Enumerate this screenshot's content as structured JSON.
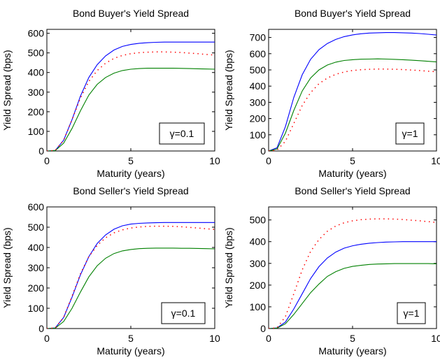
{
  "chart_data": [
    {
      "type": "line",
      "title": "Bond Buyer's Yield Spread",
      "xlabel": "Maturity (years)",
      "ylabel": "Yield Spread (bps)",
      "xlim": [
        0,
        10
      ],
      "ylim": [
        0,
        620
      ],
      "xticks": [
        0,
        5,
        10
      ],
      "yticks": [
        0,
        100,
        200,
        300,
        400,
        500,
        600
      ],
      "annotation": "γ=0.1",
      "series": [
        {
          "style": "solid",
          "color": "#0000ff",
          "x": [
            0,
            0.5,
            1,
            1.5,
            2,
            2.5,
            3,
            3.5,
            4,
            4.5,
            5,
            5.5,
            6,
            6.5,
            7,
            7.5,
            8,
            8.5,
            9,
            9.5,
            10
          ],
          "values": [
            0,
            3,
            55,
            160,
            280,
            375,
            440,
            485,
            515,
            533,
            543,
            549,
            552,
            554,
            555,
            555,
            555,
            555,
            555,
            555,
            555
          ]
        },
        {
          "style": "solid",
          "color": "#008000",
          "x": [
            0,
            0.5,
            1,
            1.5,
            2,
            2.5,
            3,
            3.5,
            4,
            4.5,
            5,
            5.5,
            6,
            6.5,
            7,
            7.5,
            8,
            8.5,
            9,
            9.5,
            10
          ],
          "values": [
            0,
            2,
            40,
            115,
            205,
            285,
            340,
            375,
            397,
            410,
            417,
            420,
            422,
            422,
            422,
            422,
            421,
            420,
            419,
            418,
            417
          ]
        },
        {
          "style": "dotted",
          "color": "#ff0000",
          "x": [
            0,
            0.5,
            1,
            1.5,
            2,
            2.5,
            3,
            3.5,
            4,
            4.5,
            5,
            5.5,
            6,
            6.5,
            7,
            7.5,
            8,
            8.5,
            9,
            9.5,
            10
          ],
          "values": [
            0,
            3,
            55,
            160,
            270,
            355,
            410,
            448,
            472,
            487,
            496,
            501,
            504,
            505,
            505,
            504,
            502,
            499,
            496,
            492,
            489
          ]
        }
      ]
    },
    {
      "type": "line",
      "title": "Bond Buyer's Yield Spread",
      "xlabel": "Maturity (years)",
      "ylabel": "Yield Spread (bps)",
      "xlim": [
        0,
        10
      ],
      "ylim": [
        0,
        750
      ],
      "xticks": [
        0,
        5,
        10
      ],
      "yticks": [
        0,
        100,
        200,
        300,
        400,
        500,
        600,
        700
      ],
      "annotation": "γ=1",
      "series": [
        {
          "style": "solid",
          "color": "#0000ff",
          "x": [
            0,
            0.5,
            1,
            1.5,
            2,
            2.5,
            3,
            3.5,
            4,
            4.5,
            5,
            5.5,
            6,
            6.5,
            7,
            7.5,
            8,
            8.5,
            9,
            9.5,
            10
          ],
          "values": [
            0,
            20,
            150,
            330,
            470,
            565,
            625,
            663,
            688,
            705,
            716,
            723,
            727,
            729,
            730,
            730,
            729,
            727,
            724,
            720,
            715
          ]
        },
        {
          "style": "solid",
          "color": "#008000",
          "x": [
            0,
            0.5,
            1,
            1.5,
            2,
            2.5,
            3,
            3.5,
            4,
            4.5,
            5,
            5.5,
            6,
            6.5,
            7,
            7.5,
            8,
            8.5,
            9,
            9.5,
            10
          ],
          "values": [
            0,
            12,
            110,
            250,
            370,
            450,
            500,
            530,
            548,
            558,
            563,
            566,
            567,
            568,
            567,
            565,
            563,
            560,
            557,
            553,
            549
          ]
        },
        {
          "style": "dotted",
          "color": "#ff0000",
          "x": [
            0,
            0.5,
            1,
            1.5,
            2,
            2.5,
            3,
            3.5,
            4,
            4.5,
            5,
            5.5,
            6,
            6.5,
            7,
            7.5,
            8,
            8.5,
            9,
            9.5,
            10
          ],
          "values": [
            0,
            5,
            60,
            170,
            280,
            360,
            415,
            450,
            473,
            487,
            496,
            501,
            504,
            505,
            505,
            504,
            502,
            499,
            496,
            492,
            489
          ]
        }
      ]
    },
    {
      "type": "line",
      "title": "Bond Seller's Yield Spread",
      "xlabel": "Maturity (years)",
      "ylabel": "Yield Spread (bps)",
      "xlim": [
        0,
        10
      ],
      "ylim": [
        0,
        600
      ],
      "xticks": [
        0,
        5,
        10
      ],
      "yticks": [
        0,
        100,
        200,
        300,
        400,
        500,
        600
      ],
      "annotation": "γ=0.1",
      "series": [
        {
          "style": "solid",
          "color": "#0000ff",
          "x": [
            0,
            0.5,
            1,
            1.5,
            2,
            2.5,
            3,
            3.5,
            4,
            4.5,
            5,
            5.5,
            6,
            6.5,
            7,
            7.5,
            8,
            8.5,
            9,
            9.5,
            10
          ],
          "values": [
            0,
            3,
            55,
            155,
            265,
            355,
            420,
            462,
            490,
            507,
            515,
            519,
            521,
            522,
            523,
            523,
            523,
            523,
            523,
            523,
            523
          ]
        },
        {
          "style": "solid",
          "color": "#008000",
          "x": [
            0,
            0.5,
            1,
            1.5,
            2,
            2.5,
            3,
            3.5,
            4,
            4.5,
            5,
            5.5,
            6,
            6.5,
            7,
            7.5,
            8,
            8.5,
            9,
            9.5,
            10
          ],
          "values": [
            0,
            2,
            35,
            100,
            180,
            255,
            310,
            347,
            370,
            383,
            390,
            394,
            396,
            397,
            397,
            397,
            396,
            396,
            395,
            394,
            393
          ]
        },
        {
          "style": "dotted",
          "color": "#ff0000",
          "x": [
            0,
            0.5,
            1,
            1.5,
            2,
            2.5,
            3,
            3.5,
            4,
            4.5,
            5,
            5.5,
            6,
            6.5,
            7,
            7.5,
            8,
            8.5,
            9,
            9.5,
            10
          ],
          "values": [
            0,
            3,
            55,
            160,
            270,
            355,
            410,
            448,
            472,
            487,
            496,
            501,
            504,
            505,
            505,
            504,
            502,
            499,
            496,
            492,
            489
          ]
        }
      ]
    },
    {
      "type": "line",
      "title": "Bond Seller's Yield Spread",
      "xlabel": "Maturity (years)",
      "ylabel": "Yield Spread (bps)",
      "xlim": [
        0,
        10
      ],
      "ylim": [
        0,
        560
      ],
      "xticks": [
        0,
        5,
        10
      ],
      "yticks": [
        0,
        100,
        200,
        300,
        400,
        500
      ],
      "annotation": "γ=1",
      "series": [
        {
          "style": "solid",
          "color": "#0000ff",
          "x": [
            0,
            0.5,
            1,
            1.5,
            2,
            2.5,
            3,
            3.5,
            4,
            4.5,
            5,
            5.5,
            6,
            6.5,
            7,
            7.5,
            8,
            8.5,
            9,
            9.5,
            10
          ],
          "values": [
            0,
            3,
            30,
            90,
            160,
            230,
            285,
            325,
            352,
            370,
            381,
            388,
            393,
            396,
            398,
            399,
            400,
            400,
            400,
            400,
            400
          ]
        },
        {
          "style": "solid",
          "color": "#008000",
          "x": [
            0,
            0.5,
            1,
            1.5,
            2,
            2.5,
            3,
            3.5,
            4,
            4.5,
            5,
            5.5,
            6,
            6.5,
            7,
            7.5,
            8,
            8.5,
            9,
            9.5,
            10
          ],
          "values": [
            0,
            2,
            22,
            65,
            115,
            165,
            205,
            240,
            262,
            277,
            286,
            291,
            295,
            297,
            298,
            299,
            299,
            299,
            299,
            299,
            298
          ]
        },
        {
          "style": "dotted",
          "color": "#ff0000",
          "x": [
            0,
            0.5,
            1,
            1.5,
            2,
            2.5,
            3,
            3.5,
            4,
            4.5,
            5,
            5.5,
            6,
            6.5,
            7,
            7.5,
            8,
            8.5,
            9,
            9.5,
            10
          ],
          "values": [
            0,
            3,
            55,
            160,
            270,
            355,
            410,
            448,
            472,
            487,
            496,
            501,
            504,
            505,
            505,
            504,
            502,
            499,
            496,
            492,
            489
          ]
        }
      ]
    }
  ]
}
